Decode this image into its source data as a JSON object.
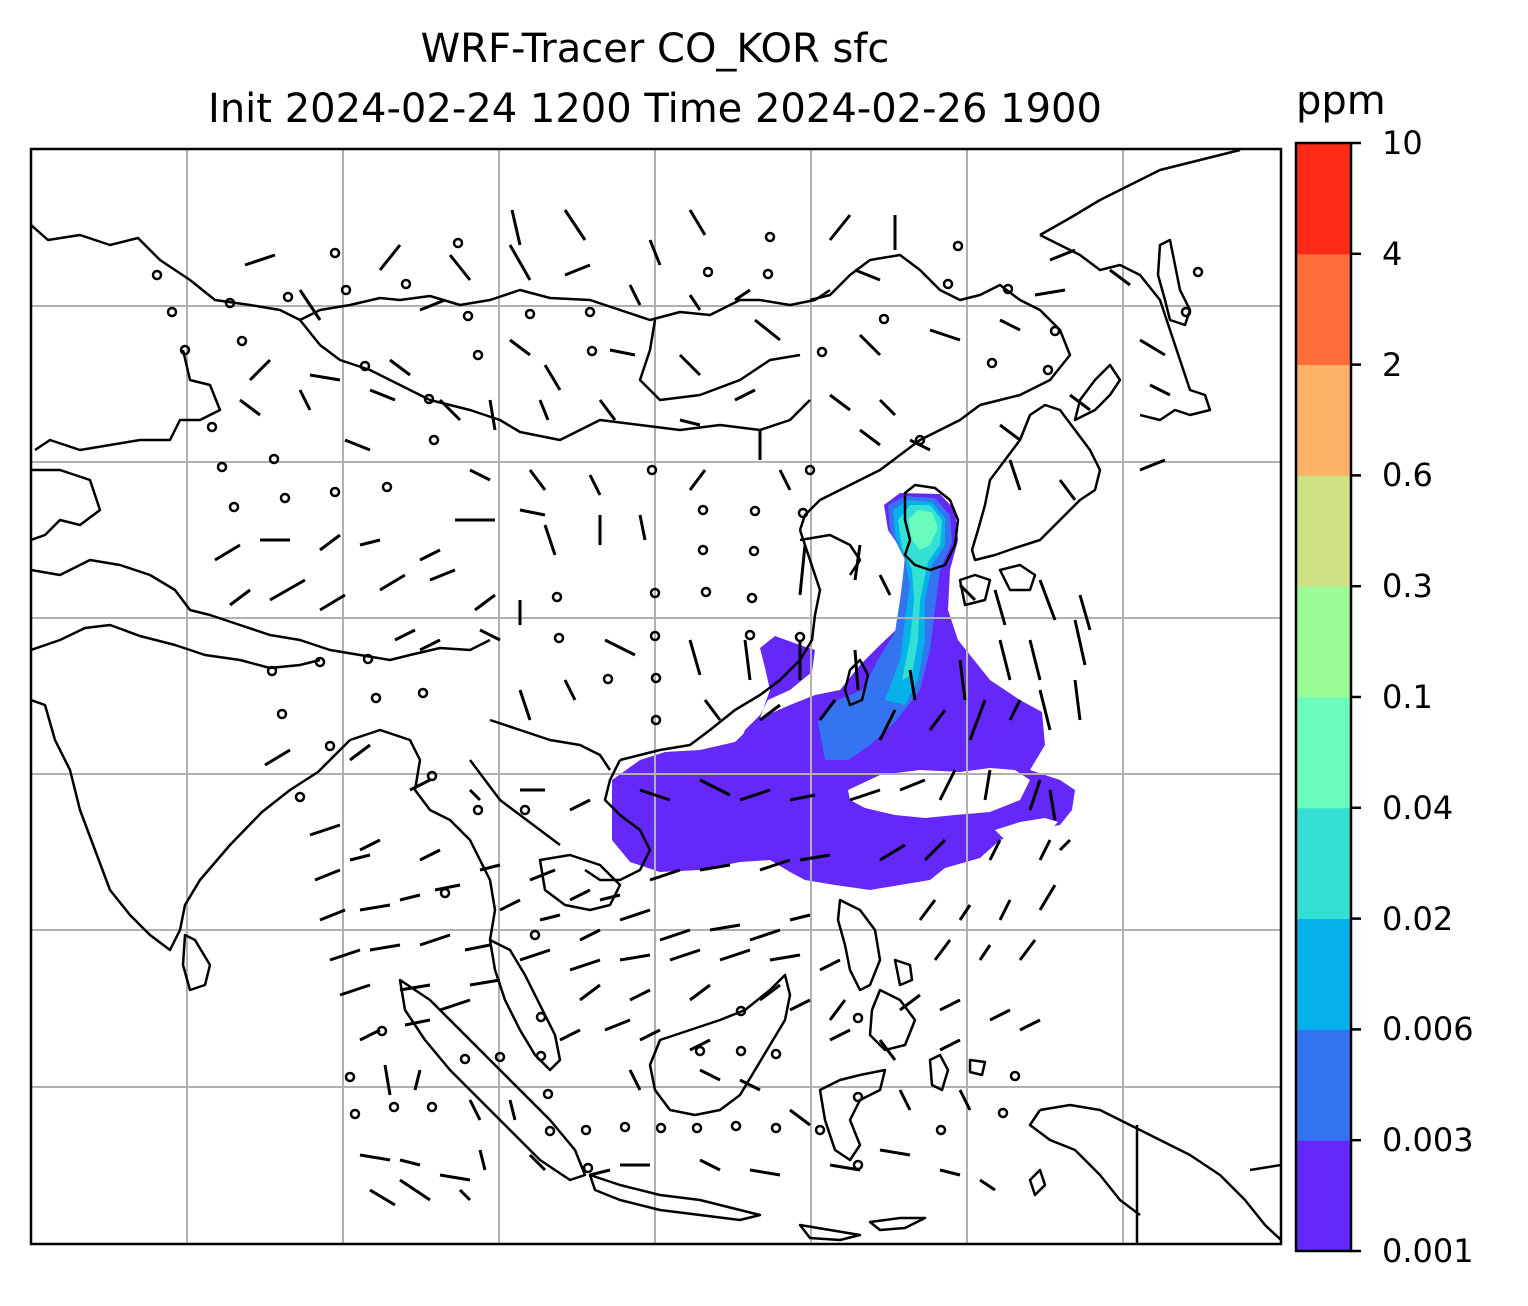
{
  "title": {
    "line1": "WRF-Tracer CO_KOR sfc",
    "line2": "Init 2024-02-24 1200 Time 2024-02-26 1900"
  },
  "colorbar": {
    "unit": "ppm",
    "ticks": [
      "0.001",
      "0.003",
      "0.006",
      "0.02",
      "0.04",
      "0.1",
      "0.3",
      "0.6",
      "2",
      "4",
      "10"
    ],
    "colors": [
      "#6428f8",
      "#3574f0",
      "#05b1e9",
      "#34dfd4",
      "#6afcbd",
      "#9bfb97",
      "#cde284",
      "#fdb365",
      "#ff6e39",
      "#ff2a17"
    ]
  },
  "map": {
    "gridline_color": "#b0b0b0",
    "coastline_color": "#000000",
    "wind_symbol": "wind-barb"
  }
}
